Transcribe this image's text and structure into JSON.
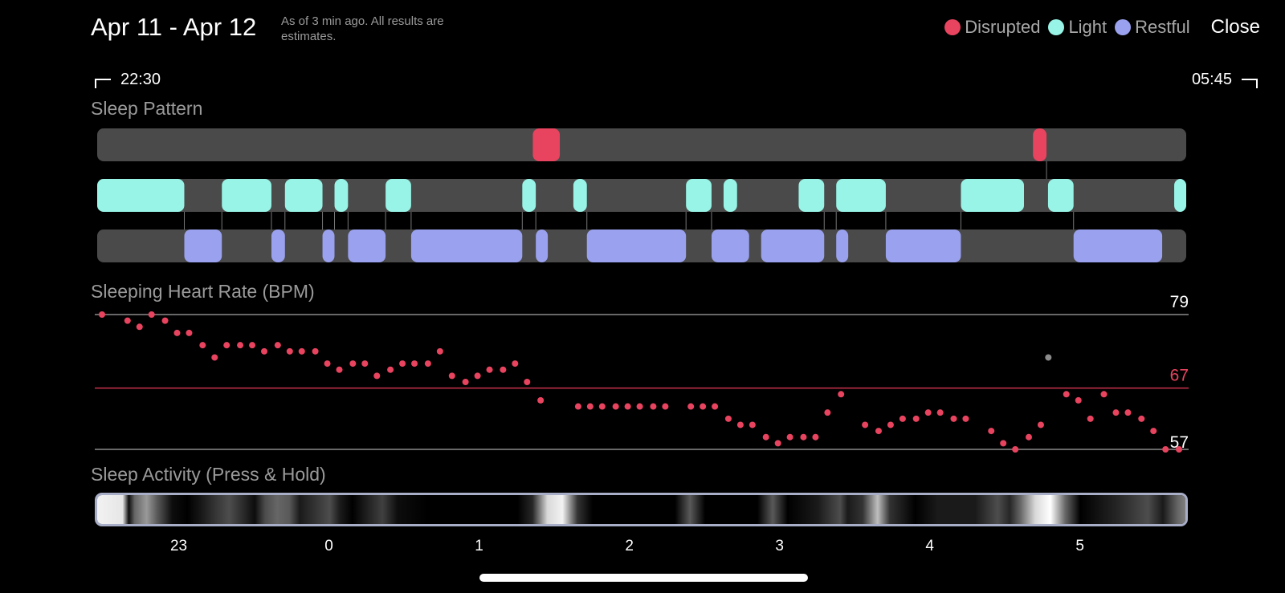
{
  "header": {
    "title": "Apr 11 - Apr 12",
    "subtitle": "As of 3 min ago. All results are estimates.",
    "close_label": "Close"
  },
  "legend": [
    {
      "label": "Disrupted",
      "color": "#e8435f"
    },
    {
      "label": "Light",
      "color": "#97f4e6"
    },
    {
      "label": "Restful",
      "color": "#9aa1ee"
    }
  ],
  "time_range": {
    "start": "22:30",
    "end": "05:45"
  },
  "sections": {
    "sleep_pattern": "Sleep Pattern",
    "heart_rate": "Sleeping Heart Rate (BPM)",
    "sleep_activity": "Sleep Activity (Press & Hold)"
  },
  "colors": {
    "disrupted": "#e8435f",
    "light": "#97f4e6",
    "restful": "#9aa1ee",
    "track": "#4a4a4a",
    "average_line": "#c9324c",
    "outlier_point": "#8c8c8c"
  },
  "chart_data": [
    {
      "type": "timeline",
      "x_range_hours": [
        -1.5,
        5.75
      ],
      "rows": [
        {
          "name": "Disrupted",
          "segments": [
            [
              1.4,
              1.58
            ],
            [
              4.73,
              4.82
            ]
          ]
        },
        {
          "name": "Light",
          "segments": [
            [
              -1.5,
              -0.92
            ],
            [
              -0.67,
              -0.34
            ],
            [
              -0.25,
              0.0
            ],
            [
              0.08,
              0.17
            ],
            [
              0.42,
              0.59
            ],
            [
              1.33,
              1.42
            ],
            [
              1.67,
              1.76
            ],
            [
              2.42,
              2.59
            ],
            [
              2.67,
              2.76
            ],
            [
              3.17,
              3.34
            ],
            [
              3.42,
              3.75
            ],
            [
              4.25,
              4.67
            ],
            [
              4.83,
              5.0
            ],
            [
              5.67,
              5.75
            ]
          ]
        },
        {
          "name": "Restful",
          "segments": [
            [
              -0.92,
              -0.67
            ],
            [
              -0.34,
              -0.25
            ],
            [
              0.0,
              0.08
            ],
            [
              0.17,
              0.42
            ],
            [
              0.59,
              1.33
            ],
            [
              1.42,
              1.5
            ],
            [
              1.76,
              2.42
            ],
            [
              2.59,
              2.84
            ],
            [
              2.92,
              3.34
            ],
            [
              3.42,
              3.5
            ],
            [
              3.75,
              4.25
            ],
            [
              5.0,
              5.59
            ]
          ]
        }
      ]
    },
    {
      "type": "scatter",
      "title": "Sleeping Heart Rate (BPM)",
      "ylim": [
        57,
        79
      ],
      "y_ticks": [
        79,
        57
      ],
      "average": 67,
      "x": [
        -1.5,
        -1.33,
        -1.25,
        -1.17,
        -1.08,
        -1.0,
        -0.92,
        -0.83,
        -0.75,
        -0.67,
        -0.58,
        -0.5,
        -0.42,
        -0.33,
        -0.25,
        -0.17,
        -0.08,
        0.0,
        0.08,
        0.17,
        0.25,
        0.33,
        0.42,
        0.5,
        0.58,
        0.67,
        0.75,
        0.83,
        0.92,
        1.0,
        1.08,
        1.17,
        1.25,
        1.33,
        1.42,
        1.67,
        1.75,
        1.83,
        1.92,
        2.0,
        2.08,
        2.17,
        2.25,
        2.42,
        2.5,
        2.58,
        2.67,
        2.75,
        2.83,
        2.92,
        3.0,
        3.08,
        3.17,
        3.25,
        3.33,
        3.42,
        3.58,
        3.67,
        3.75,
        3.83,
        3.92,
        4.0,
        4.08,
        4.17,
        4.25,
        4.42,
        4.5,
        4.58,
        4.67,
        4.75,
        4.92,
        5.0,
        5.08,
        5.17,
        5.25,
        5.33,
        5.42,
        5.5,
        5.58,
        5.67
      ],
      "values": [
        79,
        78,
        77,
        79,
        78,
        76,
        76,
        74,
        72,
        74,
        74,
        74,
        73,
        74,
        73,
        73,
        73,
        71,
        70,
        71,
        71,
        69,
        70,
        71,
        71,
        71,
        73,
        69,
        68,
        69,
        70,
        70,
        71,
        68,
        65,
        64,
        64,
        64,
        64,
        64,
        64,
        64,
        64,
        64,
        64,
        64,
        62,
        61,
        61,
        59,
        58,
        59,
        59,
        59,
        63,
        66,
        61,
        60,
        61,
        62,
        62,
        63,
        63,
        62,
        62,
        60,
        58,
        57,
        59,
        61,
        66,
        65,
        62,
        66,
        63,
        63,
        62,
        60,
        57,
        57
      ],
      "outliers": [
        {
          "x": 4.8,
          "value": 72
        }
      ]
    }
  ],
  "activity": {
    "ticks": [
      "23",
      "0",
      "1",
      "2",
      "3",
      "4",
      "5"
    ],
    "tick_hours": [
      -1.0,
      0.0,
      1.0,
      2.0,
      3.0,
      4.0,
      5.0
    ],
    "intensity_stops": [
      [
        -1.5,
        0.95
      ],
      [
        -1.33,
        0.9
      ],
      [
        -1.29,
        0.05
      ],
      [
        -1.25,
        0.4
      ],
      [
        -1.17,
        0.6
      ],
      [
        -1.1,
        0.35
      ],
      [
        -1.0,
        0.05
      ],
      [
        -0.9,
        0.0
      ],
      [
        -0.8,
        0.1
      ],
      [
        -0.72,
        0.2
      ],
      [
        -0.62,
        0.3
      ],
      [
        -0.55,
        0.2
      ],
      [
        -0.45,
        0.05
      ],
      [
        -0.38,
        0.3
      ],
      [
        -0.3,
        0.4
      ],
      [
        -0.22,
        0.35
      ],
      [
        -0.15,
        0.1
      ],
      [
        -0.05,
        0.2
      ],
      [
        0.05,
        0.3
      ],
      [
        0.12,
        0.1
      ],
      [
        0.2,
        0.0
      ],
      [
        0.4,
        0.25
      ],
      [
        0.5,
        0.05
      ],
      [
        0.7,
        0.0
      ],
      [
        1.3,
        0.0
      ],
      [
        1.4,
        0.15
      ],
      [
        1.5,
        0.85
      ],
      [
        1.6,
        0.95
      ],
      [
        1.7,
        0.2
      ],
      [
        1.8,
        0.0
      ],
      [
        2.35,
        0.0
      ],
      [
        2.45,
        0.35
      ],
      [
        2.55,
        0.0
      ],
      [
        2.9,
        0.0
      ],
      [
        3.0,
        0.35
      ],
      [
        3.1,
        0.0
      ],
      [
        3.3,
        0.1
      ],
      [
        3.45,
        0.3
      ],
      [
        3.5,
        0.1
      ],
      [
        3.6,
        0.2
      ],
      [
        3.7,
        0.75
      ],
      [
        3.78,
        0.2
      ],
      [
        3.95,
        0.0
      ],
      [
        4.1,
        0.1
      ],
      [
        4.35,
        0.1
      ],
      [
        4.5,
        0.3
      ],
      [
        4.58,
        0.15
      ],
      [
        4.65,
        0.4
      ],
      [
        4.75,
        0.85
      ],
      [
        4.85,
        1.0
      ],
      [
        4.95,
        0.4
      ],
      [
        5.05,
        0.0
      ],
      [
        5.3,
        0.15
      ],
      [
        5.5,
        0.3
      ],
      [
        5.6,
        0.1
      ],
      [
        5.7,
        0.4
      ],
      [
        5.75,
        0.5
      ]
    ]
  }
}
